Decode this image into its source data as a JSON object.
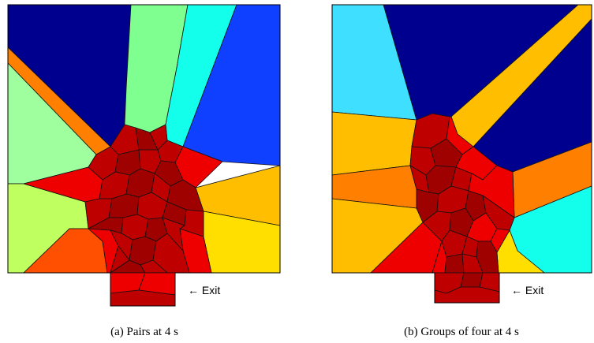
{
  "panels": [
    {
      "caption": "(a) Pairs at 4 s",
      "exit_label": "← Exit"
    },
    {
      "caption": "(b) Groups of four at 4 s",
      "exit_label": "← Exit"
    }
  ],
  "palette": {
    "navy": "#00008f",
    "blue": "#0f3fff",
    "cyan": "#13ffec",
    "light_cyan": "#3fe0ff",
    "mint": "#7fff8f",
    "light_green": "#9fff9f",
    "lime": "#bfff5f",
    "yellow": "#ffdf00",
    "orange_yellow": "#ffbf00",
    "orange": "#ff7f00",
    "red_orange": "#ff4f00",
    "red": "#ee0000",
    "dark_red": "#bf0000",
    "darker_red": "#9f0000"
  }
}
